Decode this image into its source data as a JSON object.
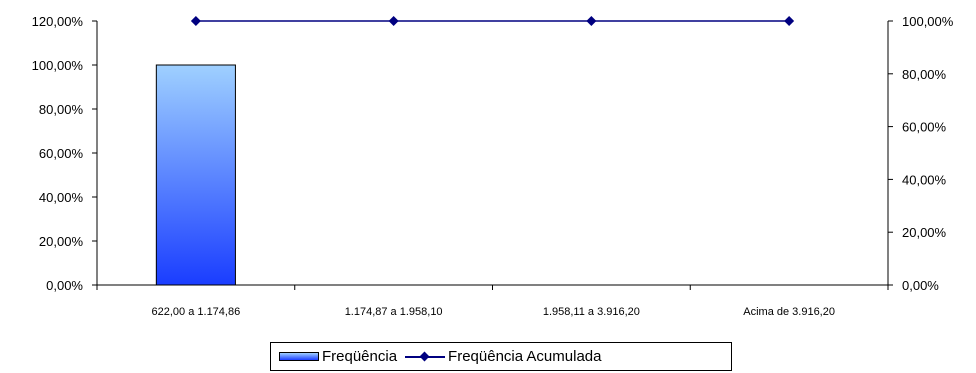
{
  "chart_data": {
    "type": "bar+line",
    "categories": [
      "622,00 a 1.174,86",
      "1.174,87 a 1.958,10",
      "1.958,11 a 3.916,20",
      "Acima de  3.916,20"
    ],
    "series": [
      {
        "name": "Freqüência",
        "type": "bar",
        "axis": "left",
        "values": [
          100,
          0,
          0,
          0
        ]
      },
      {
        "name": "Freqüência Acumulada",
        "type": "line",
        "axis": "right",
        "values": [
          100,
          100,
          100,
          100
        ]
      }
    ],
    "left_axis": {
      "ylim": [
        0,
        120
      ],
      "ticks": [
        "0,00%",
        "20,00%",
        "40,00%",
        "60,00%",
        "80,00%",
        "100,00%",
        "120,00%"
      ]
    },
    "right_axis": {
      "ylim": [
        0,
        100
      ],
      "ticks": [
        "0,00%",
        "20,00%",
        "40,00%",
        "60,00%",
        "80,00%",
        "100,00%"
      ]
    },
    "grid": false,
    "legend_position": "bottom",
    "colors": {
      "bar_top": "#9fd0ff",
      "bar_bottom": "#1a3dff",
      "line": "#000080"
    }
  }
}
